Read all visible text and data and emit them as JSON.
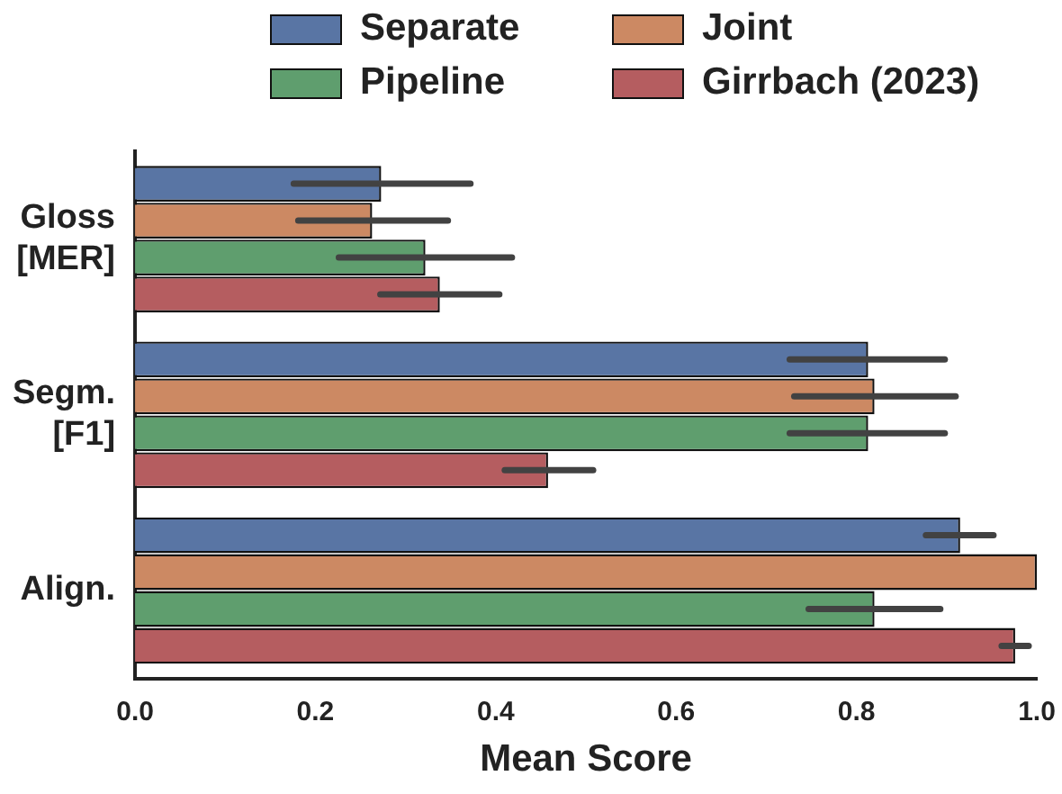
{
  "chart_data": {
    "type": "bar",
    "orientation": "horizontal",
    "xlabel": "Mean Score",
    "categories": [
      "Gloss [MER]",
      "Segm. [F1]",
      "Align."
    ],
    "series": [
      {
        "name": "Separate",
        "color": "#5975a4",
        "values": [
          0.273,
          0.813,
          0.915
        ],
        "errors": [
          [
            0.176,
            0.372
          ],
          [
            0.726,
            0.898
          ],
          [
            0.877,
            0.952
          ]
        ]
      },
      {
        "name": "Joint",
        "color": "#cc8963",
        "values": [
          0.263,
          0.82,
          1.0
        ],
        "errors": [
          [
            0.181,
            0.347
          ],
          [
            0.731,
            0.91
          ],
          null
        ]
      },
      {
        "name": "Pipeline",
        "color": "#5f9e6e",
        "values": [
          0.322,
          0.813,
          0.82
        ],
        "errors": [
          [
            0.226,
            0.418
          ],
          [
            0.726,
            0.898
          ],
          [
            0.747,
            0.893
          ]
        ]
      },
      {
        "name": "Girrbach (2023)",
        "color": "#b55d60",
        "values": [
          0.338,
          0.458,
          0.976
        ],
        "errors": [
          [
            0.272,
            0.404
          ],
          [
            0.41,
            0.508
          ],
          [
            0.961,
            0.991
          ]
        ]
      }
    ],
    "xlim": [
      0,
      1.0
    ],
    "xticks": [
      {
        "value": 0,
        "label": "0.0"
      },
      0.2,
      0.4,
      0.6,
      0.8,
      {
        "value": 1,
        "label": "1.0"
      }
    ],
    "grid": false,
    "legend": "top"
  }
}
